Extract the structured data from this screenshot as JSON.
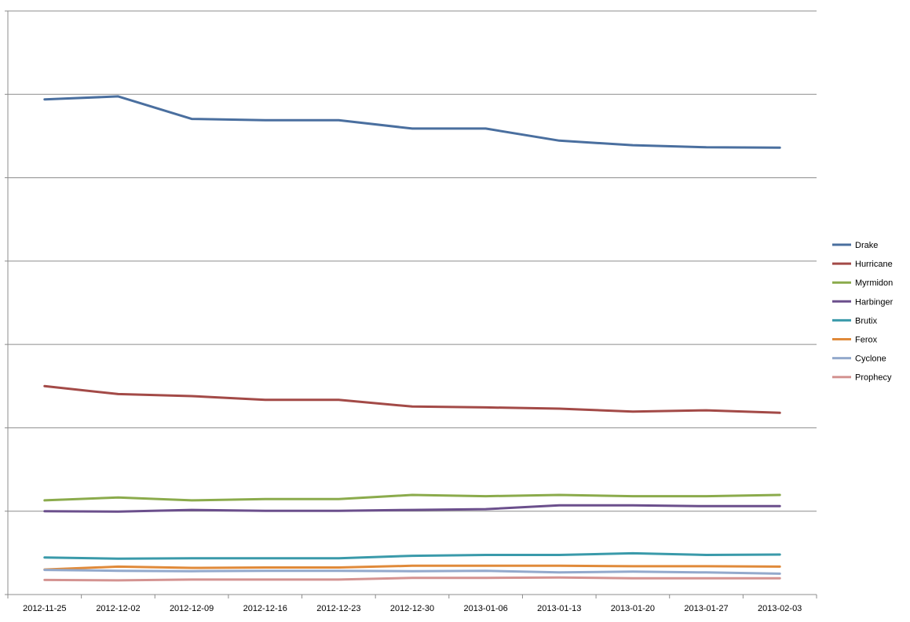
{
  "chart_data": {
    "type": "line",
    "title": "",
    "xlabel": "",
    "ylabel": "",
    "ylim": [
      0,
      14
    ],
    "y_ticks_labeled": false,
    "grid": {
      "horizontal": true,
      "vertical": false
    },
    "legend": {
      "position": "right"
    },
    "categories": [
      "2012-11-25",
      "2012-12-02",
      "2012-12-09",
      "2012-12-16",
      "2012-12-23",
      "2012-12-30",
      "2013-01-06",
      "2013-01-13",
      "2013-01-20",
      "2013-01-27",
      "2013-02-03"
    ],
    "series": [
      {
        "name": "Drake",
        "color": "#4a6f9f",
        "values": [
          11.88,
          11.95,
          11.41,
          11.38,
          11.38,
          11.18,
          11.18,
          10.89,
          10.78,
          10.73,
          10.72
        ]
      },
      {
        "name": "Hurricane",
        "color": "#a34a47",
        "values": [
          5.0,
          4.81,
          4.76,
          4.67,
          4.67,
          4.51,
          4.49,
          4.46,
          4.39,
          4.42,
          4.36
        ]
      },
      {
        "name": "Myrmidon",
        "color": "#8bab4c",
        "values": [
          2.26,
          2.33,
          2.26,
          2.29,
          2.29,
          2.39,
          2.36,
          2.39,
          2.36,
          2.36,
          2.39
        ]
      },
      {
        "name": "Harbinger",
        "color": "#6b4f8c",
        "values": [
          2.0,
          1.99,
          2.03,
          2.01,
          2.01,
          2.03,
          2.05,
          2.14,
          2.14,
          2.12,
          2.12
        ]
      },
      {
        "name": "Brutix",
        "color": "#3a9aaa",
        "values": [
          0.89,
          0.86,
          0.87,
          0.87,
          0.87,
          0.93,
          0.95,
          0.95,
          0.99,
          0.95,
          0.96
        ]
      },
      {
        "name": "Ferox",
        "color": "#e08a3a",
        "values": [
          0.6,
          0.67,
          0.64,
          0.65,
          0.65,
          0.69,
          0.69,
          0.69,
          0.68,
          0.68,
          0.67
        ]
      },
      {
        "name": "Cyclone",
        "color": "#93a9cc",
        "values": [
          0.59,
          0.57,
          0.56,
          0.57,
          0.57,
          0.56,
          0.57,
          0.53,
          0.55,
          0.53,
          0.5
        ]
      },
      {
        "name": "Prophecy",
        "color": "#d49391",
        "values": [
          0.35,
          0.34,
          0.36,
          0.36,
          0.36,
          0.4,
          0.4,
          0.41,
          0.39,
          0.39,
          0.39
        ]
      }
    ]
  }
}
